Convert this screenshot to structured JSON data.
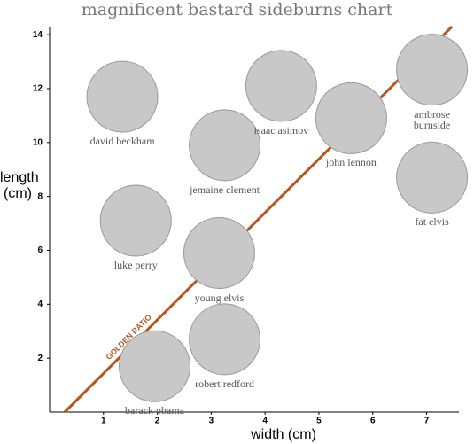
{
  "chart_data": {
    "type": "scatter",
    "title": "magnificent bastard sideburns chart",
    "x_label": "width (cm)",
    "y_label": "length (cm)",
    "xlim": [
      0,
      7.6
    ],
    "ylim": [
      0,
      14.3
    ],
    "xticks": [
      1,
      2,
      3,
      4,
      5,
      6,
      7
    ],
    "yticks": [
      2,
      4,
      6,
      8,
      10,
      12,
      14
    ],
    "color": "#c8c8c8",
    "points": {
      "labels": [
        "david beckham",
        "isaac asimov",
        "ambrose burnside",
        "john lennon",
        "jemaine clement",
        "fat elvis",
        "luke perry",
        "young elvis",
        "robert redford",
        "barack obama"
      ],
      "x": [
        1.35,
        4.3,
        7.1,
        5.6,
        3.25,
        7.1,
        1.6,
        3.15,
        3.25,
        1.95
      ],
      "y": [
        11.7,
        12.1,
        12.7,
        10.9,
        9.9,
        8.7,
        7.1,
        5.9,
        2.7,
        1.7
      ]
    },
    "reference_line": {
      "label": "GOLDEN RATIO",
      "color": "#b5571f",
      "x": [
        0.28,
        7.47
      ],
      "y": [
        0,
        14.3
      ]
    }
  }
}
